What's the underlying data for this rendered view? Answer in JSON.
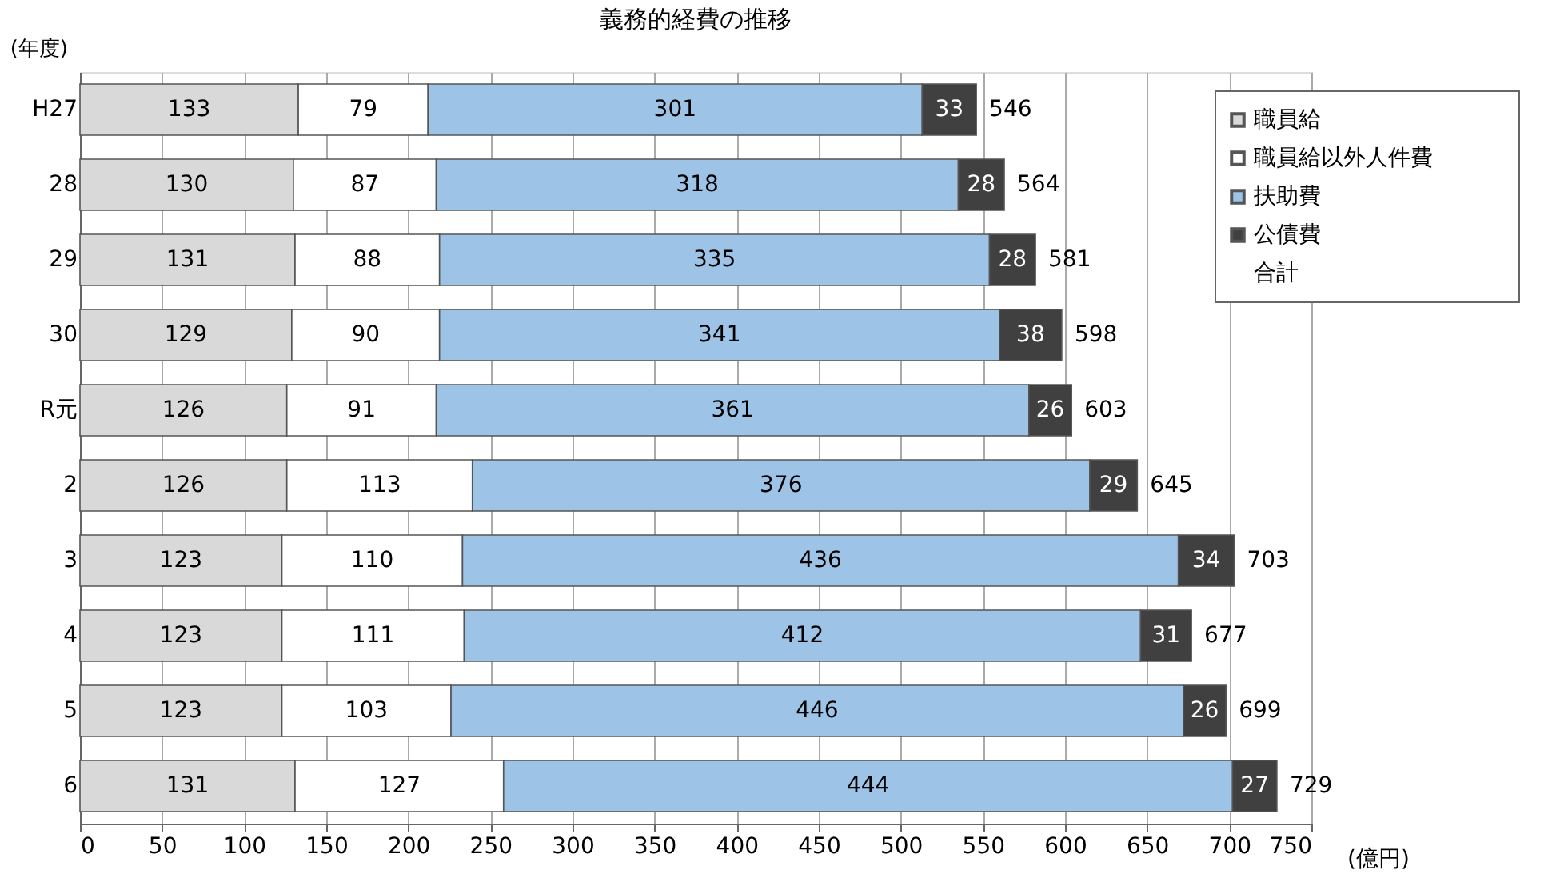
{
  "chart_data": {
    "type": "bar",
    "orientation": "horizontal",
    "stacked": true,
    "title": "義務的経費の推移",
    "xlabel": "(億円)",
    "ylabel": "(年度)",
    "categories": [
      "H27",
      "28",
      "29",
      "30",
      "R元",
      "2",
      "3",
      "4",
      "5",
      "6"
    ],
    "series": [
      {
        "name": "職員給",
        "color": "#d9d9d9",
        "values": [
          133,
          130,
          131,
          129,
          126,
          126,
          123,
          123,
          123,
          131
        ]
      },
      {
        "name": "職員給以外人件費",
        "color": "#ffffff",
        "values": [
          79,
          87,
          88,
          90,
          91,
          113,
          110,
          111,
          103,
          127
        ]
      },
      {
        "name": "扶助費",
        "color": "#9dc3e6",
        "values": [
          301,
          318,
          335,
          341,
          361,
          376,
          436,
          412,
          446,
          444
        ]
      },
      {
        "name": "公債費",
        "color": "#404040",
        "values": [
          33,
          28,
          28,
          38,
          26,
          29,
          34,
          31,
          26,
          27
        ]
      }
    ],
    "totals": [
      "546",
      "564",
      "581",
      "598",
      "603",
      "645",
      "703",
      "677",
      "699",
      "729"
    ],
    "annotations": [
      "合計"
    ],
    "data_labels": true,
    "xlim": [
      0,
      750
    ],
    "xticks": [
      0,
      50,
      100,
      150,
      200,
      250,
      300,
      350,
      400,
      450,
      500,
      550,
      600,
      650,
      700,
      750
    ],
    "grid": "x",
    "legend": "top right"
  }
}
